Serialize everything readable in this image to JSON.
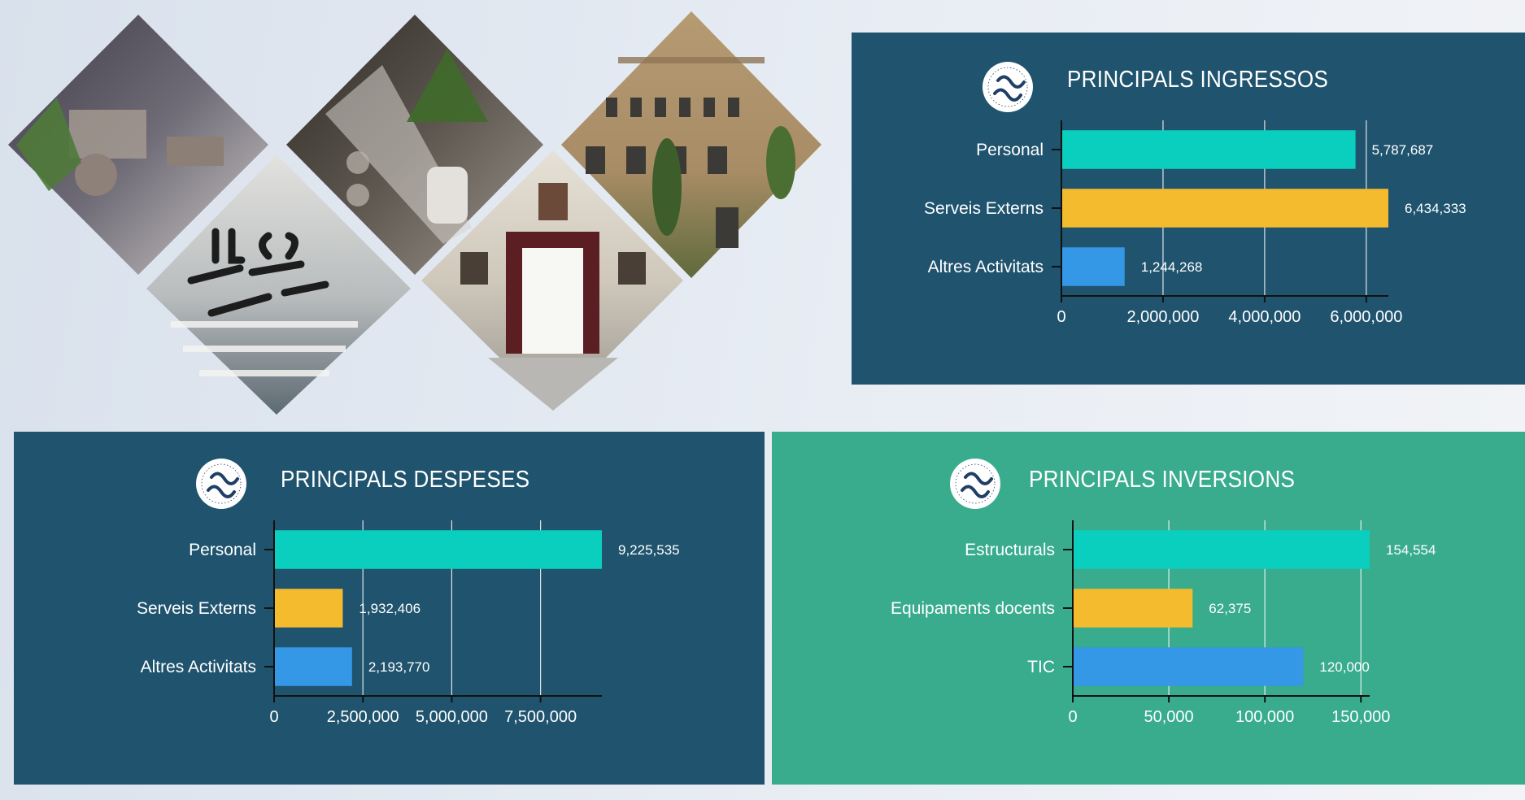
{
  "colors": {
    "dark_panel": "#1f536e",
    "green_panel": "#38ac8d",
    "bar_1": "#0bcfbe",
    "bar_2": "#f5bb2e",
    "bar_3": "#3598e6",
    "text": "#ffffff"
  },
  "logo": {
    "icon": "sagrat-cor-sarria-logo",
    "ring_text": "SAGRAT COR · SARRIÀ ·"
  },
  "collage": {
    "photos": [
      "lounge-photo",
      "staircase-plant-photo",
      "building-facade-photo",
      "dining-hall-mural-photo",
      "entrance-hall-photo"
    ]
  },
  "chart_data": [
    {
      "type": "bar",
      "title": "PRINCIPALS INGRESSOS",
      "categories": [
        "Personal",
        "Serveis Externs",
        "Altres Activitats"
      ],
      "values": [
        5787687,
        6434333,
        1244268
      ],
      "value_labels": [
        "5,787,687",
        "6,434,333",
        "1,244,268"
      ],
      "ticks": [
        0,
        2000000,
        4000000,
        6000000
      ],
      "tick_labels": [
        "0",
        "2,000,000",
        "4,000,000",
        "6,000,000"
      ],
      "xlim": [
        0,
        6434333
      ],
      "orientation": "horizontal",
      "grid": true
    },
    {
      "type": "bar",
      "title": "PRINCIPALS DESPESES",
      "categories": [
        "Personal",
        "Serveis Externs",
        "Altres Activitats"
      ],
      "values": [
        9225535,
        1932406,
        2193770
      ],
      "value_labels": [
        "9,225,535",
        "1,932,406",
        "2,193,770"
      ],
      "ticks": [
        0,
        2500000,
        5000000,
        7500000
      ],
      "tick_labels": [
        "0",
        "2,500,000",
        "5,000,000",
        "7,500,000"
      ],
      "xlim": [
        0,
        9225535
      ],
      "orientation": "horizontal",
      "grid": true
    },
    {
      "type": "bar",
      "title": "PRINCIPALS INVERSIONS",
      "categories": [
        "Estructurals",
        "Equipaments docents",
        "TIC"
      ],
      "values": [
        154554,
        62375,
        120000
      ],
      "value_labels": [
        "154,554",
        "62,375",
        "120,000"
      ],
      "ticks": [
        0,
        50000,
        100000,
        150000
      ],
      "tick_labels": [
        "0",
        "50,000",
        "100,000",
        "150,000"
      ],
      "xlim": [
        0,
        154554
      ],
      "orientation": "horizontal",
      "grid": true
    }
  ]
}
